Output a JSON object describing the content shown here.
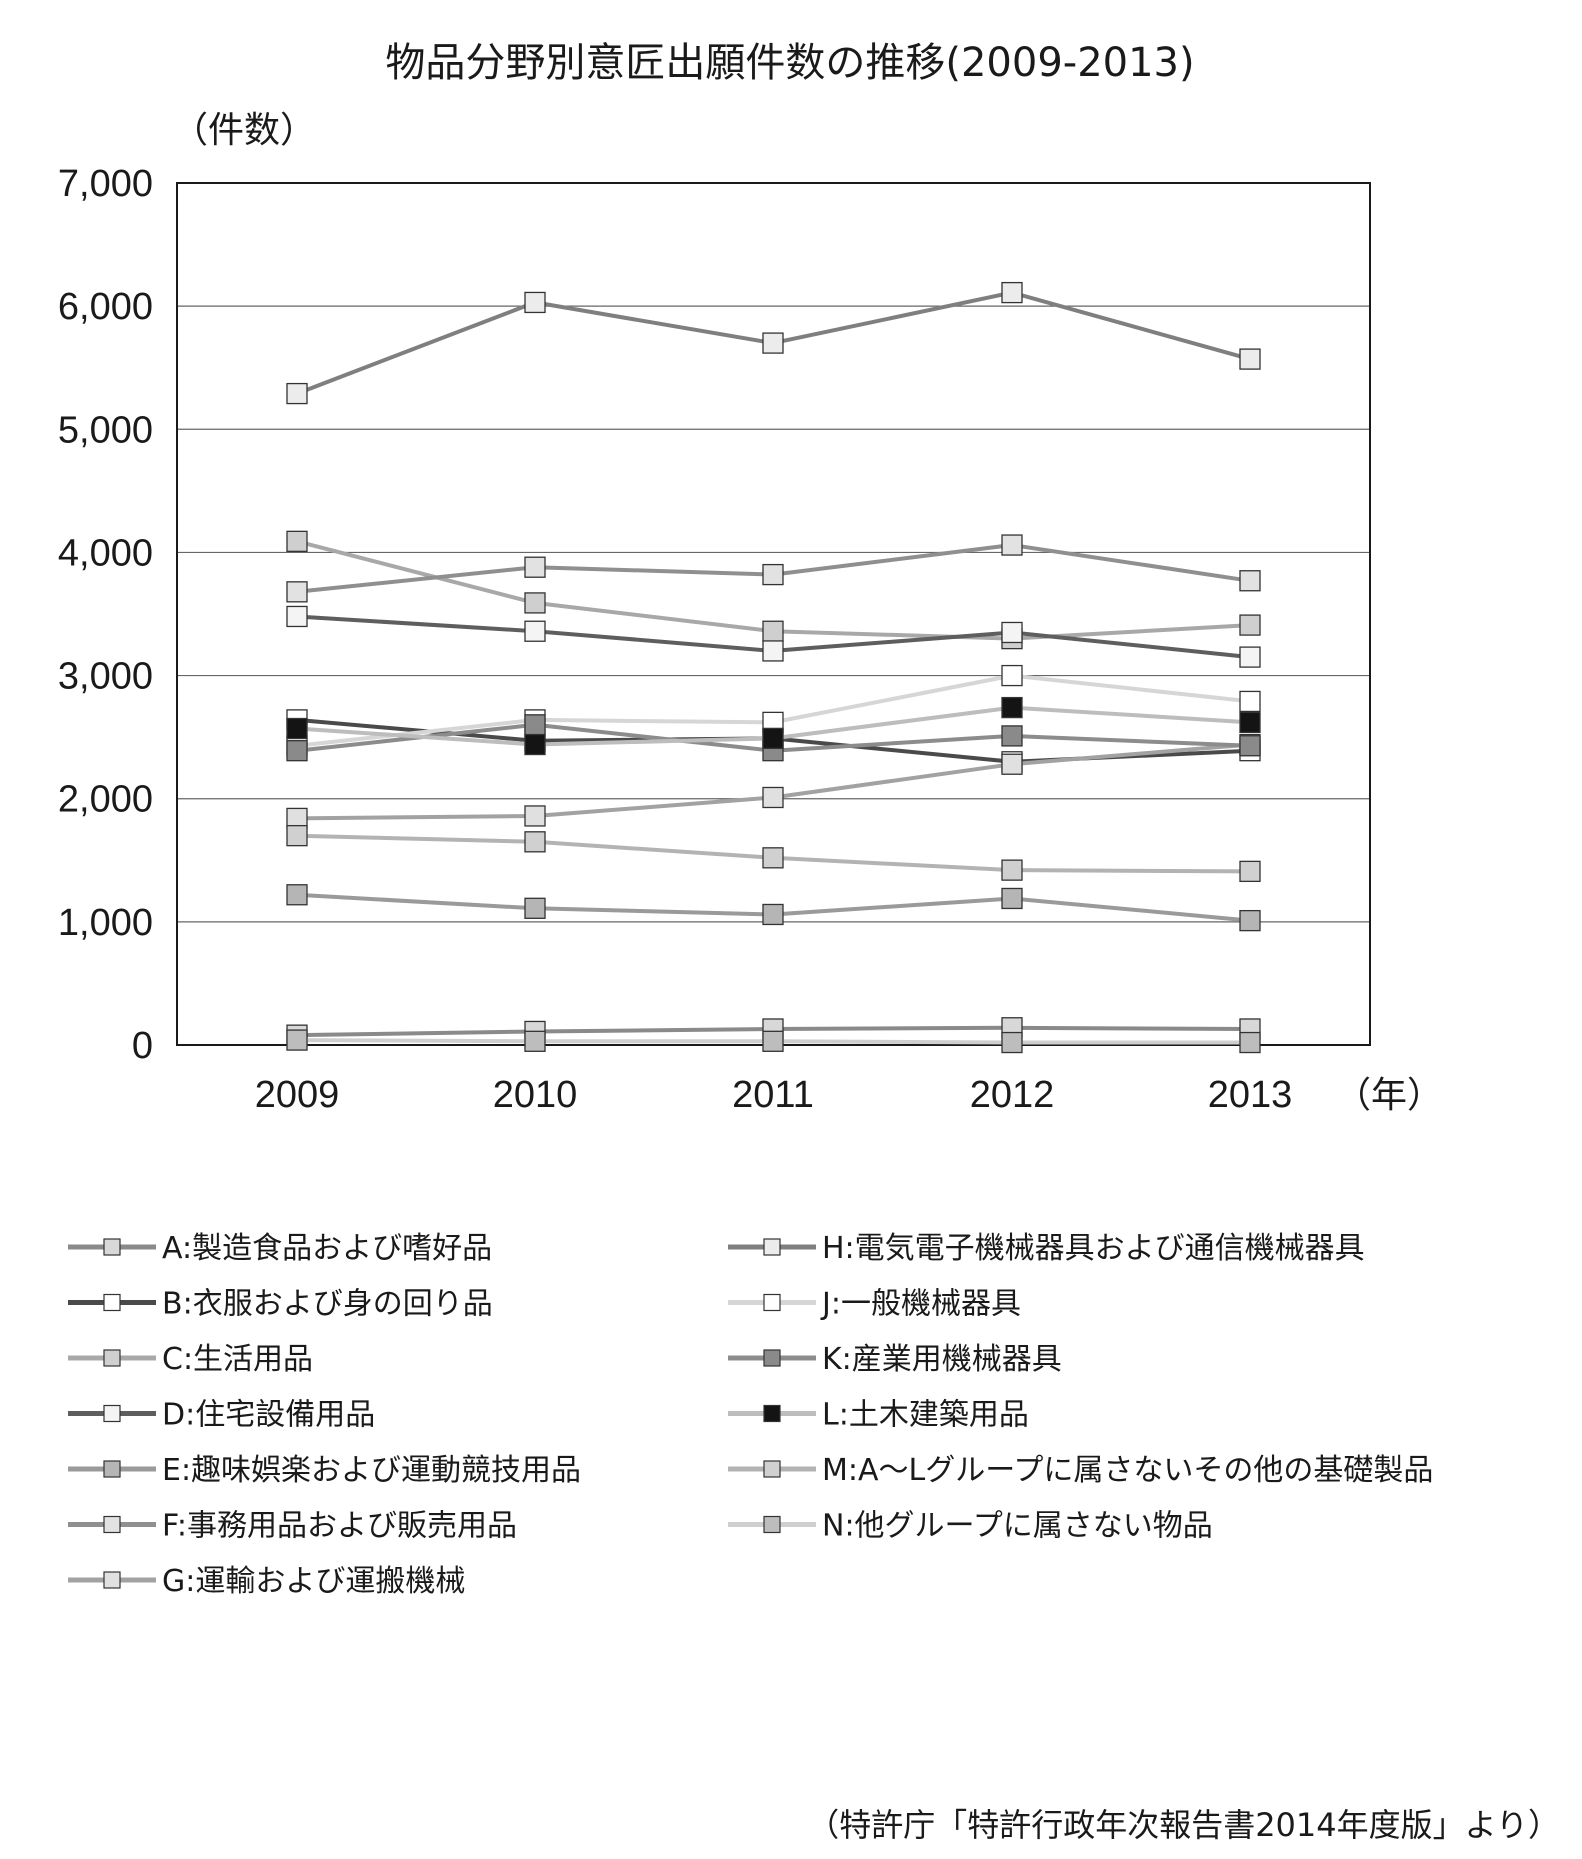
{
  "chart_data": {
    "type": "line",
    "title": "物品分野別意匠出願件数の推移(2009-2013)",
    "ylabel": "（件数）",
    "xlabel": "（年）",
    "x": [
      "2009",
      "2010",
      "2011",
      "2012",
      "2013"
    ],
    "ylim": [
      0,
      7000
    ],
    "y_ticks": [
      "0",
      "1,000",
      "2,000",
      "3,000",
      "4,000",
      "5,000",
      "6,000",
      "7,000"
    ],
    "grid": true,
    "legend_position": "bottom",
    "series": [
      {
        "name": "A:製造食品および嗜好品",
        "values": [
          80,
          110,
          130,
          140,
          130
        ],
        "color": "#8a8a8a",
        "marker": "#d8d8d8"
      },
      {
        "name": "B:衣服および身の回り品",
        "values": [
          2640,
          2470,
          2490,
          2300,
          2390
        ],
        "color": "#4a4a4a",
        "marker": "#ffffff"
      },
      {
        "name": "C:生活用品",
        "values": [
          4090,
          3590,
          3360,
          3300,
          3410
        ],
        "color": "#a8a8a8",
        "marker": "#cfcfcf"
      },
      {
        "name": "D:住宅設備用品",
        "values": [
          3480,
          3360,
          3200,
          3350,
          3150
        ],
        "color": "#5e5e5e",
        "marker": "#f4f4f4"
      },
      {
        "name": "E:趣味娯楽および運動競技用品",
        "values": [
          1220,
          1110,
          1060,
          1190,
          1010
        ],
        "color": "#9a9a9a",
        "marker": "#b5b5b5"
      },
      {
        "name": "F:事務用品および販売用品",
        "values": [
          3680,
          3880,
          3820,
          4060,
          3770
        ],
        "color": "#8f8f8f",
        "marker": "#e2e2e2"
      },
      {
        "name": "G:運輸および運搬機械",
        "values": [
          1840,
          1860,
          2010,
          2280,
          2440
        ],
        "color": "#a2a2a2",
        "marker": "#e0e0e0"
      },
      {
        "name": "H:電気電子機械器具および通信機械器具",
        "values": [
          5290,
          6030,
          5700,
          6110,
          5570
        ],
        "color": "#7f7f7f",
        "marker": "#ececec"
      },
      {
        "name": "J:一般機械器具",
        "values": [
          2430,
          2640,
          2620,
          3000,
          2790
        ],
        "color": "#d6d6d6",
        "marker": "#ffffff"
      },
      {
        "name": "K:産業用機械器具",
        "values": [
          2390,
          2600,
          2390,
          2510,
          2430
        ],
        "color": "#8c8c8c",
        "marker": "#8a8a8a"
      },
      {
        "name": "L:土木建築用品",
        "values": [
          2570,
          2440,
          2490,
          2740,
          2620
        ],
        "color": "#bdbdbd",
        "marker": "#141414"
      },
      {
        "name": "M:A～Lグループに属さないその他の基礎製品",
        "values": [
          1700,
          1650,
          1520,
          1420,
          1410
        ],
        "color": "#b3b3b3",
        "marker": "#d0d0d0"
      },
      {
        "name": "N:他グループに属さない物品",
        "values": [
          40,
          30,
          30,
          20,
          20
        ],
        "color": "#cfcfcf",
        "marker": "#bdbdbd"
      }
    ],
    "source": "（特許庁「特許行政年次報告書2014年度版」より）"
  }
}
